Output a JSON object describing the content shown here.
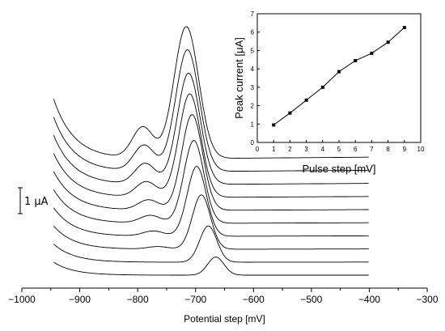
{
  "chart_data": [
    {
      "type": "line",
      "xlabel": "Potential step [mV]",
      "ylabel": "",
      "xlim": [
        -1000,
        -300
      ],
      "x_ticks": [
        -1000,
        -900,
        -800,
        -700,
        -600,
        -500,
        -400,
        -300
      ],
      "x_tick_labels": [
        "−1000",
        "−900",
        "−800",
        "−700",
        "−600",
        "−500",
        "−400",
        "−300"
      ],
      "scale_bar_label": "1 μA",
      "offset_step_uA": 0.5,
      "series": [
        {
          "baseline_uA": 0.0,
          "peak_x": -665,
          "peak_uA": 0.7,
          "shoulder_uA": 0.0,
          "start_rise_uA": 0.5
        },
        {
          "baseline_uA": 0.5,
          "peak_x": -678,
          "peak_uA": 1.4,
          "shoulder_uA": 0.0,
          "start_rise_uA": 0.7
        },
        {
          "baseline_uA": 1.0,
          "peak_x": -690,
          "peak_uA": 2.1,
          "shoulder_uA": 0.1,
          "start_rise_uA": 0.9
        },
        {
          "baseline_uA": 1.5,
          "peak_x": -698,
          "peak_uA": 2.7,
          "shoulder_uA": 0.2,
          "start_rise_uA": 1.1
        },
        {
          "baseline_uA": 2.0,
          "peak_x": -703,
          "peak_uA": 3.2,
          "shoulder_uA": 0.3,
          "start_rise_uA": 1.3
        },
        {
          "baseline_uA": 2.5,
          "peak_x": -706,
          "peak_uA": 3.7,
          "shoulder_uA": 0.4,
          "start_rise_uA": 1.5
        },
        {
          "baseline_uA": 3.0,
          "peak_x": -710,
          "peak_uA": 4.0,
          "shoulder_uA": 0.6,
          "start_rise_uA": 1.7
        },
        {
          "baseline_uA": 3.5,
          "peak_x": -712,
          "peak_uA": 4.3,
          "shoulder_uA": 0.8,
          "start_rise_uA": 1.9
        },
        {
          "baseline_uA": 4.0,
          "peak_x": -714,
          "peak_uA": 4.7,
          "shoulder_uA": 1.0,
          "start_rise_uA": 2.1
        },
        {
          "baseline_uA": 4.5,
          "peak_x": -716,
          "peak_uA": 5.1,
          "shoulder_uA": 1.2,
          "start_rise_uA": 2.3
        }
      ]
    },
    {
      "type": "line",
      "xlabel": "Pulse step [mV]",
      "ylabel": "Peak current [μA]",
      "xlim": [
        0,
        10
      ],
      "ylim": [
        0,
        7
      ],
      "x_ticks": [
        0,
        1,
        2,
        3,
        4,
        5,
        6,
        7,
        8,
        9,
        10
      ],
      "y_ticks": [
        0,
        1,
        2,
        3,
        4,
        5,
        6,
        7
      ],
      "x": [
        1,
        2,
        3,
        4,
        5,
        6,
        7,
        8,
        9
      ],
      "y": [
        0.95,
        1.6,
        2.3,
        3.0,
        3.85,
        4.45,
        4.85,
        5.45,
        6.25
      ]
    }
  ]
}
